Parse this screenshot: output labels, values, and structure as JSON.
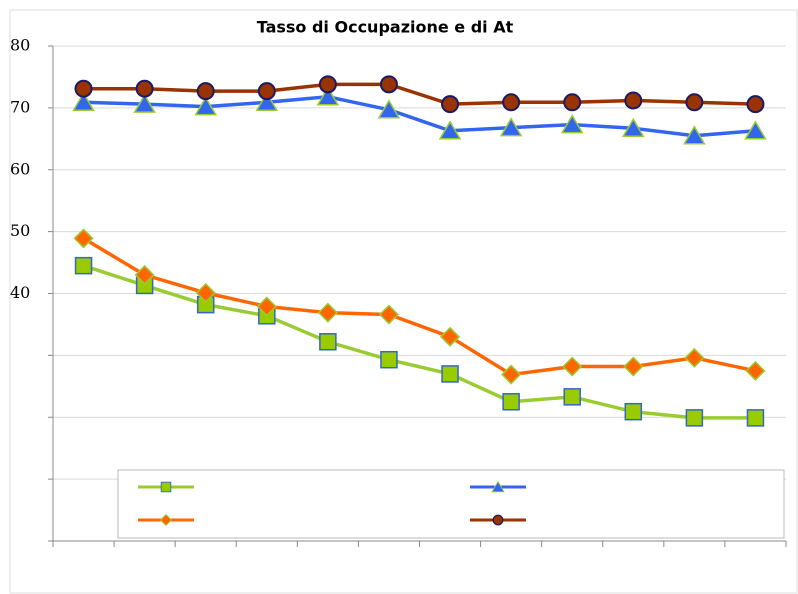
{
  "chart_data": {
    "type": "line",
    "title": "Tasso di Occupazione e di At",
    "categories": [
      null,
      null,
      null,
      null,
      null,
      null,
      null,
      null,
      null,
      null,
      null,
      null
    ],
    "series": [
      {
        "color": "#99cc33",
        "marker": "square",
        "marker_fill": "#99cc00",
        "marker_edge": "#3366cc",
        "values": [
          44.5,
          41.3,
          38.2,
          36.4,
          32.2,
          29.3,
          27.0,
          22.5,
          23.3,
          20.9,
          19.9,
          19.9
        ]
      },
      {
        "color": "#ff6600",
        "marker": "diamond",
        "marker_fill": "#ff6600",
        "marker_edge": "#99cc33",
        "values": [
          48.9,
          43.0,
          40.1,
          37.9,
          36.9,
          36.6,
          33.0,
          26.9,
          28.2,
          28.2,
          29.6,
          27.5
        ]
      },
      {
        "color": "#3366ee",
        "marker": "triangle",
        "marker_fill": "#3366ee",
        "marker_edge": "#99cc33",
        "values": [
          70.9,
          70.6,
          70.2,
          70.9,
          71.8,
          69.7,
          66.3,
          66.8,
          67.3,
          66.7,
          65.5,
          66.3
        ]
      },
      {
        "color": "#993300",
        "marker": "circle",
        "marker_fill": "#993300",
        "marker_edge": "#1a1a66",
        "values": [
          73.1,
          73.1,
          72.7,
          72.7,
          73.8,
          73.8,
          70.6,
          70.9,
          70.9,
          71.2,
          70.9,
          70.6
        ]
      }
    ],
    "ylim": [
      0,
      80
    ],
    "yticks": [
      {
        "value": 0,
        "label": null
      },
      {
        "value": 10,
        "label": null
      },
      {
        "value": 20,
        "label": null
      },
      {
        "value": 30,
        "label": null
      },
      40,
      50,
      60,
      70,
      80
    ],
    "grid": true
  }
}
